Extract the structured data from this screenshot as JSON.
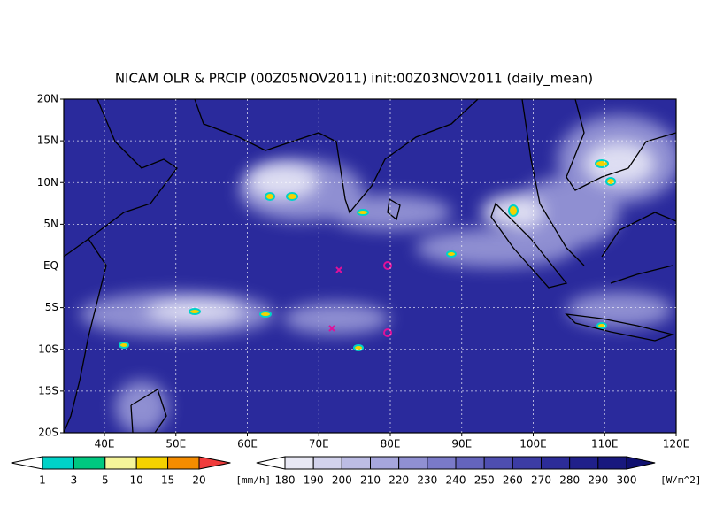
{
  "title": "NICAM OLR & PRCIP (00Z05NOV2011) init:00Z03NOV2011 (daily_mean)",
  "lat_labels": [
    "20N",
    "15N",
    "10N",
    "5N",
    "EQ",
    "5S",
    "10S",
    "15S",
    "20S"
  ],
  "lon_labels": [
    "40E",
    "50E",
    "60E",
    "70E",
    "80E",
    "90E",
    "100E",
    "110E",
    "120E"
  ],
  "precip_legend": {
    "labels": [
      "1",
      "3",
      "5",
      "10",
      "15",
      "20"
    ],
    "unit": "[mm/h]",
    "colors": [
      "#ffffff",
      "#00d2c8",
      "#00c880",
      "#f5f59a",
      "#f5d200",
      "#f58c00",
      "#f03c3c"
    ]
  },
  "olr_legend": {
    "labels": [
      "180",
      "190",
      "200",
      "210",
      "220",
      "230",
      "240",
      "250",
      "260",
      "270",
      "280",
      "290",
      "300"
    ],
    "unit": "[W/m^2]",
    "colors": [
      "#ffffff",
      "#e8e8f4",
      "#d2d2ec",
      "#bcbce4",
      "#a6a6dc",
      "#9090d2",
      "#7a7ac8",
      "#6464bc",
      "#4e4eb0",
      "#3c3ca4",
      "#2c2c98",
      "#20208a",
      "#18187e",
      "#101070"
    ]
  }
}
